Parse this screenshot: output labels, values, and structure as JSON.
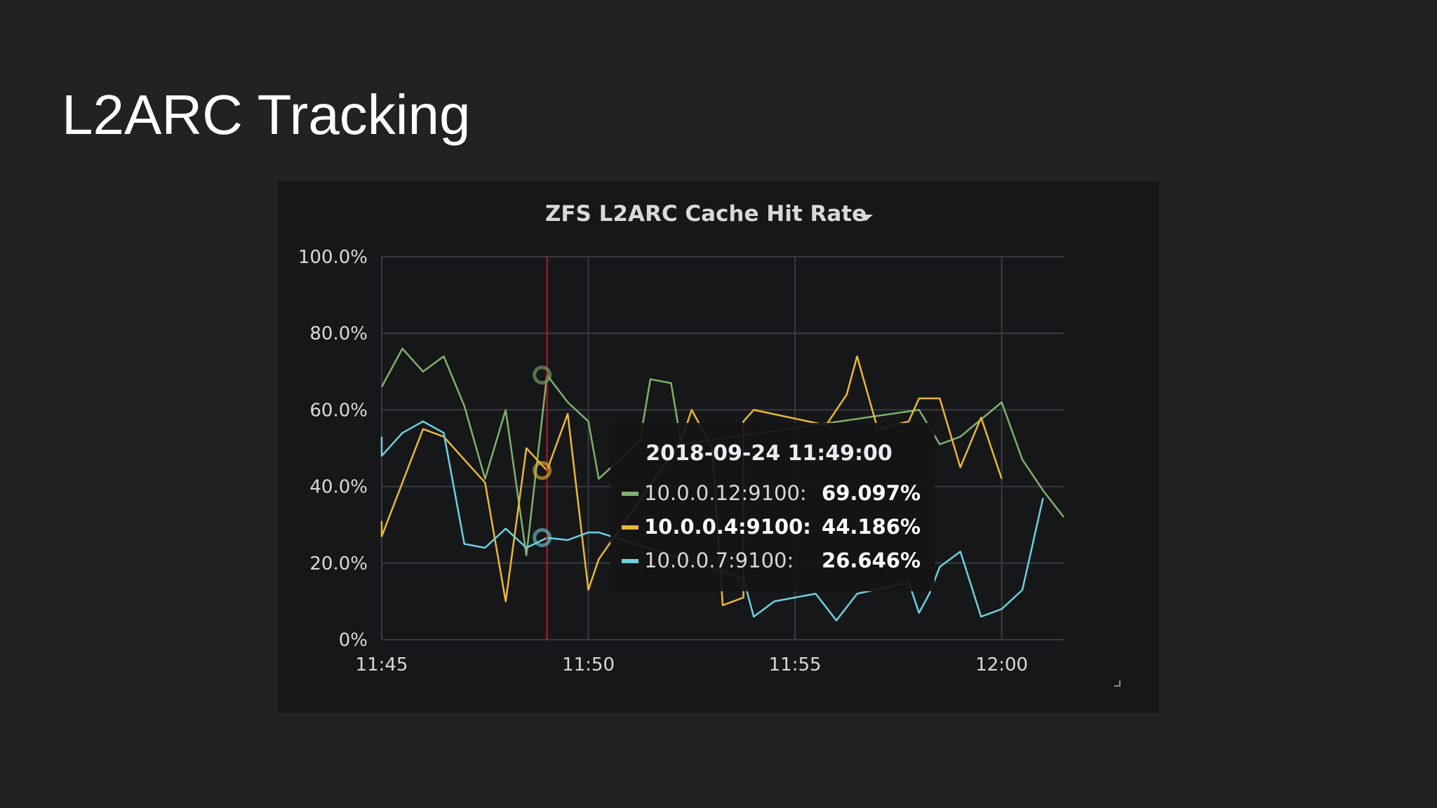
{
  "slide": {
    "title": "L2ARC Tracking"
  },
  "panel": {
    "title": "ZFS L2ARC Cache Hit Rate",
    "menu_icon": "caret-down-icon",
    "resize_icon": "resize-corner-icon"
  },
  "colors": {
    "green": "#7eb26d",
    "yellow": "#eab839",
    "blue": "#6ed0e0",
    "cursor": "#c4162a",
    "grid": "#3a3b3f"
  },
  "chart_data": {
    "type": "line",
    "title": "ZFS L2ARC Cache Hit Rate",
    "xlabel": "",
    "ylabel": "",
    "x_range": [
      "11:45",
      "12:01:30"
    ],
    "ylim": [
      0,
      100
    ],
    "y_ticks": [
      "0%",
      "20.0%",
      "40.0%",
      "60.0%",
      "80.0%",
      "100.0%"
    ],
    "y_tick_values": [
      0,
      20,
      40,
      60,
      80,
      100
    ],
    "x_ticks": [
      "11:45",
      "11:50",
      "11:55",
      "12:00"
    ],
    "x_tick_values": [
      0,
      5,
      10,
      15
    ],
    "cursor_x": 4,
    "tooltip": {
      "time": "2018-09-24 11:49:00",
      "rows": [
        {
          "series": "10.0.0.12:9100:",
          "value": "69.097%",
          "color": "green",
          "highlight": false
        },
        {
          "series": "10.0.0.4:9100:",
          "value": "44.186%",
          "color": "yellow",
          "highlight": true
        },
        {
          "series": "10.0.0.7:9100:",
          "value": "26.646%",
          "color": "blue",
          "highlight": false
        }
      ]
    },
    "series": [
      {
        "name": "10.0.0.12:9100",
        "color": "green",
        "points": [
          [
            0,
            66
          ],
          [
            0.5,
            76
          ],
          [
            1,
            70
          ],
          [
            1.5,
            74
          ],
          [
            2,
            61
          ],
          [
            2.5,
            42
          ],
          [
            3,
            60
          ],
          [
            3.5,
            22
          ],
          [
            4,
            69.1
          ],
          [
            4.5,
            62
          ],
          [
            5,
            57
          ],
          [
            5.25,
            42
          ],
          [
            6.25,
            52
          ],
          [
            6.5,
            68
          ],
          [
            7,
            67
          ],
          [
            7.25,
            51
          ],
          [
            13,
            60
          ],
          [
            13.5,
            51
          ],
          [
            14,
            53
          ],
          [
            15,
            62
          ],
          [
            15.5,
            47
          ],
          [
            16,
            39
          ],
          [
            16.5,
            32
          ]
        ]
      },
      {
        "name": "10.0.0.4:9100",
        "color": "yellow",
        "points": [
          [
            0,
            31
          ],
          [
            0,
            27
          ],
          [
            0.5,
            41
          ],
          [
            1,
            55
          ],
          [
            1.5,
            53
          ],
          [
            2,
            47
          ],
          [
            2.5,
            41
          ],
          [
            3,
            10
          ],
          [
            3.5,
            50
          ],
          [
            4,
            44.2
          ],
          [
            4.5,
            59
          ],
          [
            5,
            13
          ],
          [
            5.25,
            21
          ],
          [
            7.25,
            52
          ],
          [
            7.5,
            60
          ],
          [
            8,
            50
          ],
          [
            8.25,
            9
          ],
          [
            8.75,
            11
          ],
          [
            8.75,
            57
          ],
          [
            9,
            60
          ],
          [
            10.75,
            56
          ],
          [
            11.25,
            64
          ],
          [
            11.5,
            74
          ],
          [
            12,
            55
          ],
          [
            12.75,
            57
          ],
          [
            13,
            63
          ],
          [
            13.5,
            63
          ],
          [
            14,
            45
          ],
          [
            14.5,
            58
          ],
          [
            15,
            42
          ]
        ]
      },
      {
        "name": "10.0.0.7:9100",
        "color": "blue",
        "points": [
          [
            0,
            53
          ],
          [
            0,
            48
          ],
          [
            0.5,
            54
          ],
          [
            1,
            57
          ],
          [
            1.5,
            54
          ],
          [
            2,
            25
          ],
          [
            2.5,
            24
          ],
          [
            3,
            29
          ],
          [
            3.5,
            24
          ],
          [
            4,
            26.6
          ],
          [
            4.5,
            26
          ],
          [
            5,
            28
          ],
          [
            5.25,
            28
          ],
          [
            8.75,
            16
          ],
          [
            9,
            6
          ],
          [
            9.5,
            10
          ],
          [
            10,
            11
          ],
          [
            10.5,
            12
          ],
          [
            11,
            5
          ],
          [
            11.5,
            12
          ],
          [
            12.75,
            15
          ],
          [
            13,
            7
          ],
          [
            13.25,
            12
          ],
          [
            13.5,
            19
          ],
          [
            14,
            23
          ],
          [
            14.5,
            6
          ],
          [
            15,
            8
          ],
          [
            15.5,
            13
          ],
          [
            16,
            37
          ]
        ]
      }
    ]
  }
}
